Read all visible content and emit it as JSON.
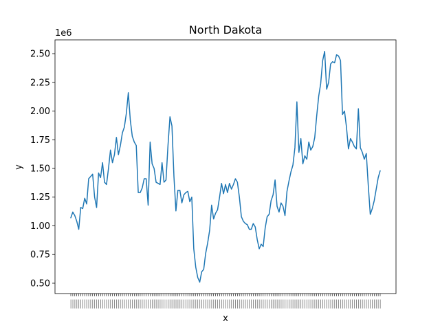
{
  "chart_data": {
    "type": "line",
    "title": "North Dakota",
    "xlabel": "x",
    "ylabel": "y",
    "y_multiplier_label": "1e6",
    "ylim": [
      0.41,
      2.62
    ],
    "y_ticks": [
      0.5,
      0.75,
      1.0,
      1.25,
      1.5,
      1.75,
      2.0,
      2.25,
      2.5
    ],
    "y_tick_labels": [
      "0.50",
      "0.75",
      "1.00",
      "1.25",
      "1.50",
      "1.75",
      "2.00",
      "2.25",
      "2.50"
    ],
    "x_tick_labels_note": "dense overlapping tick labels (unreadable)",
    "grid": false,
    "series_color": "#1f77b4",
    "series": [
      {
        "values": [
          1.07,
          1.12,
          1.09,
          1.04,
          0.97,
          1.16,
          1.15,
          1.24,
          1.19,
          1.41,
          1.43,
          1.45,
          1.25,
          1.16,
          1.46,
          1.42,
          1.55,
          1.38,
          1.36,
          1.5,
          1.66,
          1.55,
          1.62,
          1.77,
          1.62,
          1.7,
          1.81,
          1.86,
          1.98,
          2.16,
          1.92,
          1.78,
          1.73,
          1.7,
          1.29,
          1.29,
          1.33,
          1.41,
          1.41,
          1.18,
          1.73,
          1.54,
          1.5,
          1.38,
          1.37,
          1.36,
          1.55,
          1.38,
          1.4,
          1.7,
          1.95,
          1.87,
          1.43,
          1.13,
          1.31,
          1.31,
          1.2,
          1.27,
          1.29,
          1.3,
          1.21,
          1.25,
          0.8,
          0.64,
          0.55,
          0.51,
          0.6,
          0.62,
          0.76,
          0.85,
          0.96,
          1.18,
          1.06,
          1.11,
          1.14,
          1.25,
          1.37,
          1.28,
          1.36,
          1.29,
          1.37,
          1.32,
          1.36,
          1.41,
          1.38,
          1.25,
          1.08,
          1.04,
          1.02,
          1.01,
          0.97,
          0.97,
          1.02,
          0.99,
          0.88,
          0.8,
          0.84,
          0.82,
          0.98,
          1.08,
          1.1,
          1.22,
          1.27,
          1.4,
          1.17,
          1.12,
          1.2,
          1.17,
          1.09,
          1.3,
          1.39,
          1.47,
          1.53,
          1.68,
          2.08,
          1.64,
          1.76,
          1.54,
          1.61,
          1.58,
          1.73,
          1.66,
          1.69,
          1.77,
          1.96,
          2.13,
          2.24,
          2.44,
          2.52,
          2.19,
          2.25,
          2.41,
          2.43,
          2.42,
          2.49,
          2.48,
          2.44,
          1.97,
          2.0,
          1.86,
          1.67,
          1.76,
          1.73,
          1.69,
          1.67,
          2.02,
          1.68,
          1.64,
          1.58,
          1.63,
          1.35,
          1.1,
          1.15,
          1.22,
          1.32,
          1.42,
          1.48
        ]
      }
    ]
  }
}
